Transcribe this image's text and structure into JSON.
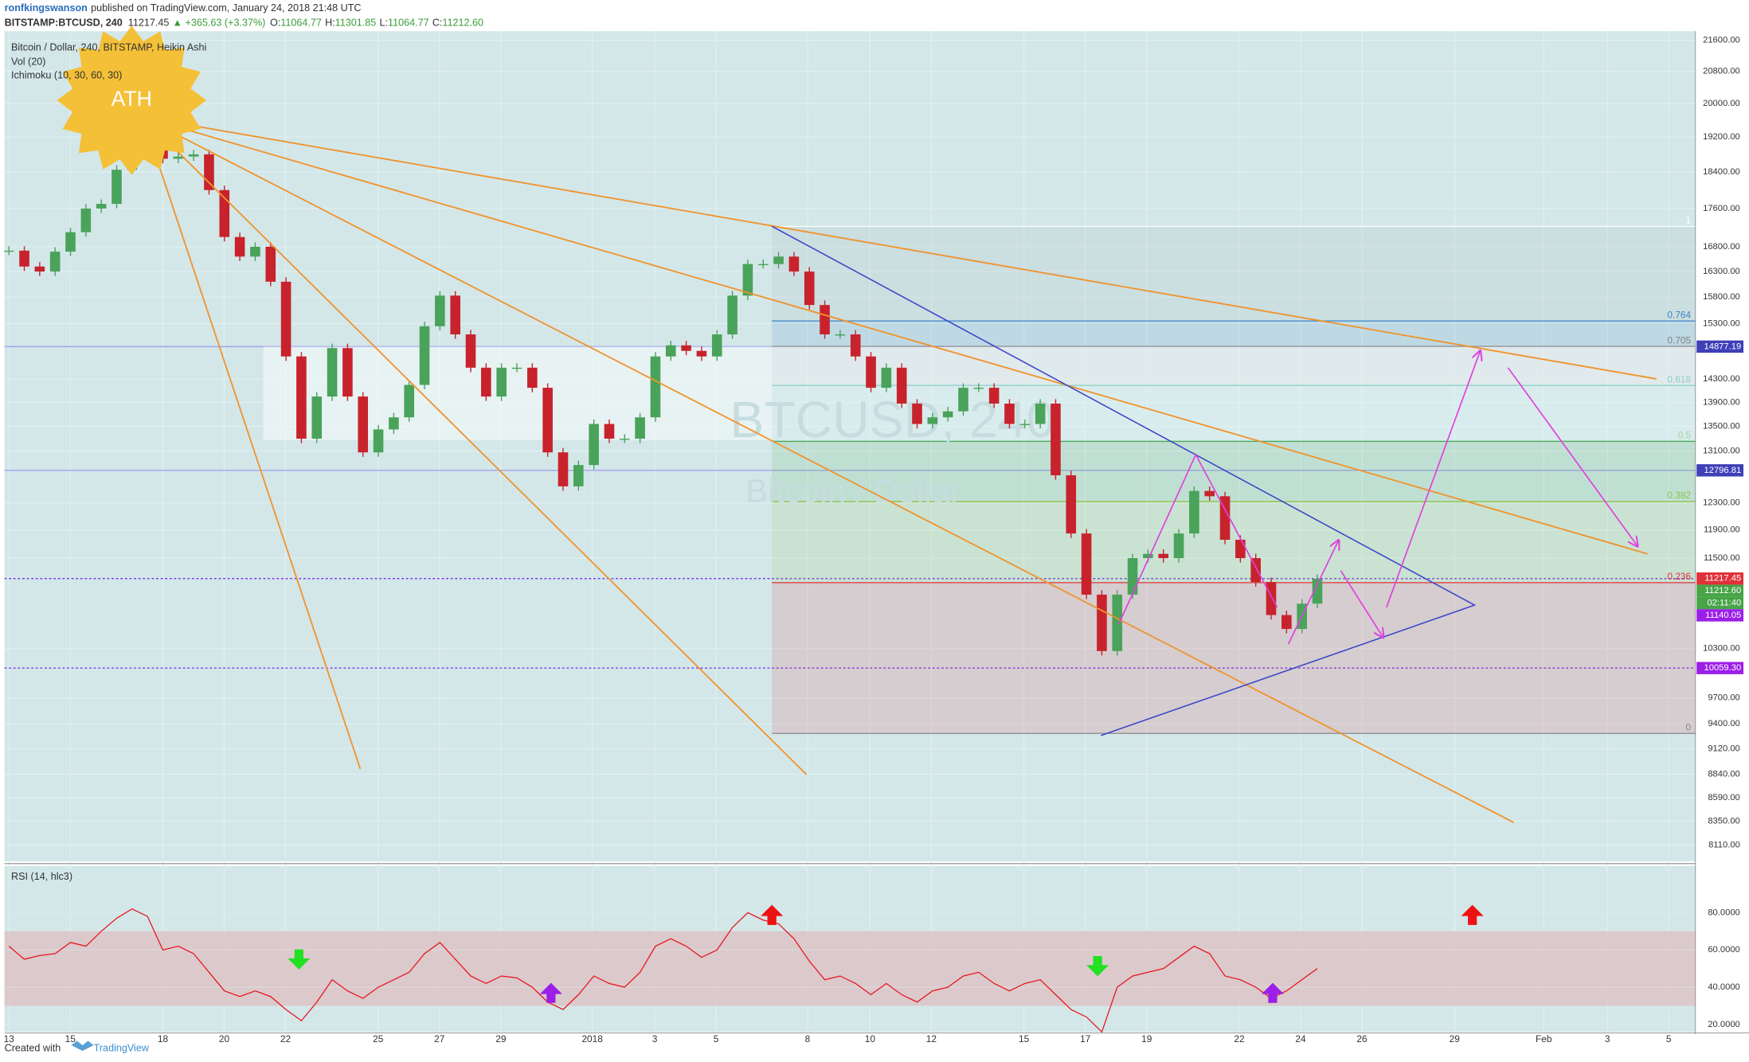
{
  "header": {
    "author": "ronfkingswanson",
    "published": "published on TradingView.com, January 24, 2018 21:48 UTC",
    "symbol": "BITSTAMP:BTCUSD, 240",
    "last": "11217.45",
    "change": "▲ +365.63 (+3.37%)",
    "ohlc": [
      {
        "key": "O:",
        "value": "11064.77"
      },
      {
        "key": "H:",
        "value": "11301.85"
      },
      {
        "key": "L:",
        "value": "11064.77"
      },
      {
        "key": "C:",
        "value": "11212.60"
      }
    ]
  },
  "legend": [
    "Bitcoin / Dollar, 240, BITSTAMP, Heikin Ashi",
    "Vol (20)",
    "Ichimoku (10, 30, 60, 30)"
  ],
  "watermark": {
    "symbol": "BTCUSD, 240",
    "name": "Bitcoin / Dollar"
  },
  "annotation": "ATH",
  "chart_data": {
    "type": "candlestick",
    "log_scale": true,
    "grid": true,
    "up_color": "#4aa35a",
    "down_color": "#c8232c",
    "ylim": [
      7950,
      21840
    ],
    "yticks": [
      {
        "value": 21600,
        "label": "21600.00"
      },
      {
        "value": 20800,
        "label": "20800.00"
      },
      {
        "value": 20000,
        "label": "20000.00"
      },
      {
        "value": 19200,
        "label": "19200.00"
      },
      {
        "value": 18400,
        "label": "18400.00"
      },
      {
        "value": 17600,
        "label": "17600.00"
      },
      {
        "value": 16800,
        "label": "16800.00"
      },
      {
        "value": 16300,
        "label": "16300.00"
      },
      {
        "value": 15800,
        "label": "15800.00"
      },
      {
        "value": 15300,
        "label": "15300.00"
      },
      {
        "value": 14300,
        "label": "14300.00"
      },
      {
        "value": 13900,
        "label": "13900.00"
      },
      {
        "value": 13500,
        "label": "13500.00"
      },
      {
        "value": 13100,
        "label": "13100.00"
      },
      {
        "value": 12300,
        "label": "12300.00"
      },
      {
        "value": 11900,
        "label": "11900.00"
      },
      {
        "value": 11500,
        "label": "11500.00"
      },
      {
        "value": 10300,
        "label": "10300.00"
      },
      {
        "value": 9700,
        "label": "9700.00"
      },
      {
        "value": 9400,
        "label": "9400.00"
      },
      {
        "value": 9120,
        "label": "9120.00"
      },
      {
        "value": 8840,
        "label": "8840.00"
      },
      {
        "value": 8590,
        "label": "8590.00"
      },
      {
        "value": 8350,
        "label": "8350.00"
      },
      {
        "value": 8110,
        "label": "8110.00"
      }
    ],
    "x_labels": [
      "13",
      "15",
      "18",
      "20",
      "22",
      "25",
      "27",
      "29",
      "2018",
      "3",
      "5",
      "8",
      "10",
      "12",
      "15",
      "17",
      "19",
      "22",
      "24",
      "26",
      "29",
      "Feb",
      "3",
      "5"
    ],
    "values": [
      16720,
      16400,
      16300,
      16700,
      17100,
      17600,
      17700,
      18450,
      19200,
      19300,
      18700,
      18750,
      18800,
      18000,
      17000,
      16600,
      16800,
      16100,
      14700,
      13300,
      14000,
      14850,
      14000,
      13080,
      13450,
      13650,
      14200,
      15250,
      15830,
      15100,
      14500,
      14000,
      14500,
      14500,
      14150,
      13080,
      12550,
      12880,
      13540,
      13300,
      13300,
      13650,
      14700,
      14900,
      14800,
      14700,
      15100,
      15830,
      16450,
      16450,
      16600,
      16300,
      15650,
      15100,
      15100,
      14700,
      14150,
      14500,
      13880,
      13540,
      13650,
      13750,
      14150,
      14150,
      13880,
      13540,
      13540,
      13880,
      12720,
      11850,
      11000,
      10270,
      11000,
      11500,
      11560,
      11500,
      11850,
      12480,
      12400,
      11760,
      11500,
      11170,
      10730,
      10550,
      10880,
      11212.6
    ],
    "price_lines": [
      {
        "value": 14877.19,
        "label": "14877.19",
        "color": "#3f3fb8",
        "line": "solid",
        "line_color": "#a3a3ea"
      },
      {
        "value": 12796.81,
        "label": "12796.81",
        "color": "#3f3fb8",
        "line": "solid",
        "line_color": "#a3a3ea"
      },
      {
        "value": 11217.45,
        "label": "11217.45",
        "color": "#e0313a",
        "line": "dotted",
        "line_color": "#7a3cf0"
      },
      {
        "value": 11212.6,
        "label": "11212.60",
        "color": "#47a447"
      }
    ],
    "countdown": {
      "label": "02:11:40",
      "color": "#47a447"
    },
    "price_lines_after": [
      {
        "value": 11140.05,
        "label": "11140.05",
        "color": "#9b1fe8"
      },
      {
        "value": 10059.3,
        "label": "10059.30",
        "color": "#9b1fe8",
        "line": "dotted",
        "line_color": "#7a3cf0"
      }
    ],
    "fib": {
      "anchors": [
        9290,
        17220
      ],
      "levels": [
        {
          "level": 0,
          "color": "#888888"
        },
        {
          "level": 0.236,
          "color": "#e0313a"
        },
        {
          "level": 0.382,
          "color": "#8bc34a"
        },
        {
          "level": 0.5,
          "color": "#4caf50"
        },
        {
          "level": 0.618,
          "color": "#26a69a"
        },
        {
          "level": 0.705,
          "color": "#808080"
        },
        {
          "level": 0.764,
          "color": "#3d85c6"
        },
        {
          "level": 1,
          "color": "#ffffff"
        }
      ]
    },
    "rsi": {
      "title": "RSI (14, hlc3)",
      "color": "#e8141e",
      "ylim": [
        16,
        104.5
      ],
      "band": [
        30,
        70
      ],
      "band_color": "#dcc3c6",
      "yticks": [
        {
          "value": 80,
          "label": "80.0000"
        },
        {
          "value": 60,
          "label": "60.0000"
        },
        {
          "value": 40,
          "label": "40.0000"
        },
        {
          "value": 20,
          "label": "20.0000"
        }
      ],
      "values": [
        62,
        55,
        57,
        58,
        64,
        62,
        70,
        77,
        82,
        78,
        60,
        62,
        58,
        48,
        38,
        35,
        38,
        35,
        28,
        22,
        32,
        44,
        38,
        34,
        40,
        44,
        48,
        58,
        64,
        55,
        46,
        42,
        46,
        45,
        40,
        32,
        28,
        36,
        46,
        42,
        40,
        48,
        62,
        66,
        62,
        56,
        60,
        72,
        80,
        76,
        74,
        66,
        54,
        44,
        46,
        42,
        36,
        42,
        36,
        32,
        38,
        40,
        46,
        48,
        42,
        38,
        42,
        44,
        36,
        28,
        24,
        16,
        40,
        46,
        48,
        50,
        56,
        62,
        58,
        46,
        44,
        40,
        34,
        38,
        44,
        50
      ]
    }
  },
  "footer": {
    "created_with": "Created with",
    "brand": "TradingView"
  }
}
